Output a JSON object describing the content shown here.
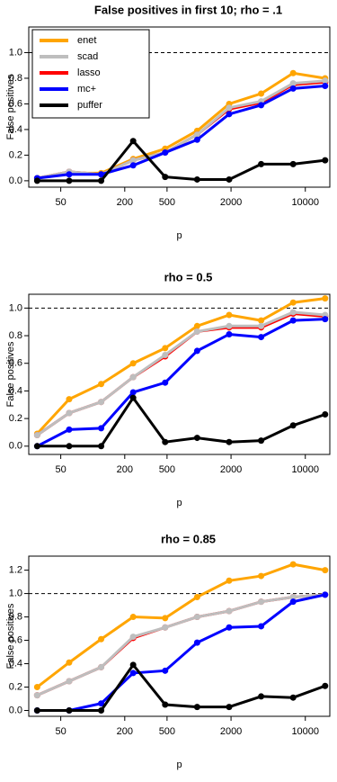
{
  "chart_data": [
    {
      "type": "line",
      "title": "False positives in first 10;  rho = .1",
      "x_label": "p",
      "y_label": "False positives",
      "x": [
        30,
        60,
        120,
        240,
        480,
        960,
        1920,
        3840,
        7680,
        15360
      ],
      "log_x": true,
      "xlim": [
        25,
        17000
      ],
      "xticks": [
        50,
        200,
        500,
        2000,
        10000
      ],
      "ylim": [
        -0.05,
        1.2
      ],
      "yticks": [
        {
          "value": 0,
          "label": "0.0"
        },
        0.2,
        0.4,
        0.6,
        0.8,
        {
          "value": 1,
          "label": "1.0"
        }
      ],
      "hline": 1,
      "legend": "top-left",
      "series": [
        {
          "name": "enet",
          "color": "#ffa500",
          "values": [
            0.02,
            0.06,
            0.06,
            0.17,
            0.25,
            0.39,
            0.6,
            0.68,
            0.84,
            0.8
          ]
        },
        {
          "name": "scad",
          "color": "#bebebe",
          "values": [
            0.02,
            0.07,
            0.05,
            0.16,
            0.22,
            0.36,
            0.57,
            0.62,
            0.76,
            0.78
          ]
        },
        {
          "name": "lasso",
          "color": "#ff0000",
          "values": [
            0.02,
            0.07,
            0.05,
            0.16,
            0.22,
            0.36,
            0.56,
            0.61,
            0.75,
            0.77
          ]
        },
        {
          "name": "mc+",
          "color": "#0000ff",
          "values": [
            0.02,
            0.05,
            0.05,
            0.12,
            0.22,
            0.32,
            0.52,
            0.59,
            0.72,
            0.74
          ]
        },
        {
          "name": "puffer",
          "color": "#000000",
          "values": [
            0,
            0,
            0,
            0.31,
            0.03,
            0.01,
            0.01,
            0.13,
            0.13,
            0.16
          ]
        }
      ]
    },
    {
      "type": "line",
      "title": "rho = 0.5",
      "x_label": "p",
      "y_label": "False positives",
      "x": [
        30,
        60,
        120,
        240,
        480,
        960,
        1920,
        3840,
        7680,
        15360
      ],
      "log_x": true,
      "xlim": [
        25,
        17000
      ],
      "xticks": [
        50,
        200,
        500,
        2000,
        10000
      ],
      "ylim": [
        -0.06,
        1.1
      ],
      "yticks": [
        {
          "value": 0,
          "label": "0.0"
        },
        0.2,
        0.4,
        0.6,
        0.8,
        {
          "value": 1,
          "label": "1.0"
        }
      ],
      "hline": 1,
      "series": [
        {
          "color": "#ffa500",
          "values": [
            0.09,
            0.34,
            0.45,
            0.6,
            0.71,
            0.87,
            0.95,
            0.91,
            1.04,
            1.07
          ]
        },
        {
          "color": "#bebebe",
          "values": [
            0.08,
            0.24,
            0.32,
            0.5,
            0.66,
            0.83,
            0.87,
            0.87,
            0.97,
            0.95
          ]
        },
        {
          "color": "#ff0000",
          "values": [
            0.08,
            0.24,
            0.32,
            0.5,
            0.65,
            0.83,
            0.86,
            0.86,
            0.96,
            0.94
          ]
        },
        {
          "color": "#0000ff",
          "values": [
            0,
            0.12,
            0.13,
            0.39,
            0.46,
            0.69,
            0.81,
            0.79,
            0.91,
            0.92
          ]
        },
        {
          "color": "#000000",
          "values": [
            0,
            0,
            0,
            0.35,
            0.03,
            0.06,
            0.03,
            0.04,
            0.15,
            0.23
          ]
        }
      ]
    },
    {
      "type": "line",
      "title": "rho = 0.85",
      "x_label": "p",
      "y_label": "False positives",
      "x": [
        30,
        60,
        120,
        240,
        480,
        960,
        1920,
        3840,
        7680,
        15360
      ],
      "log_x": true,
      "xlim": [
        25,
        17000
      ],
      "xticks": [
        50,
        200,
        500,
        2000,
        10000
      ],
      "ylim": [
        -0.05,
        1.32
      ],
      "yticks": [
        {
          "value": 0,
          "label": "0.0"
        },
        0.2,
        0.4,
        0.6,
        0.8,
        {
          "value": 1,
          "label": "1.0"
        },
        1.2
      ],
      "hline": 1,
      "series": [
        {
          "color": "#ffa500",
          "values": [
            0.2,
            0.41,
            0.61,
            0.8,
            0.79,
            0.97,
            1.11,
            1.15,
            1.25,
            1.2
          ]
        },
        {
          "color": "#bebebe",
          "values": [
            0.13,
            0.25,
            0.37,
            0.63,
            0.71,
            0.8,
            0.85,
            0.93,
            0.97,
            0.99
          ]
        },
        {
          "color": "#ff0000",
          "values": [
            0.13,
            0.25,
            0.37,
            0.62,
            0.71,
            0.8,
            0.85,
            0.93,
            0.97,
            0.99
          ]
        },
        {
          "color": "#0000ff",
          "values": [
            0,
            0,
            0.06,
            0.32,
            0.34,
            0.58,
            0.71,
            0.72,
            0.93,
            0.99
          ]
        },
        {
          "color": "#000000",
          "values": [
            0,
            0,
            0,
            0.39,
            0.05,
            0.03,
            0.03,
            0.12,
            0.11,
            0.21
          ]
        }
      ]
    }
  ]
}
